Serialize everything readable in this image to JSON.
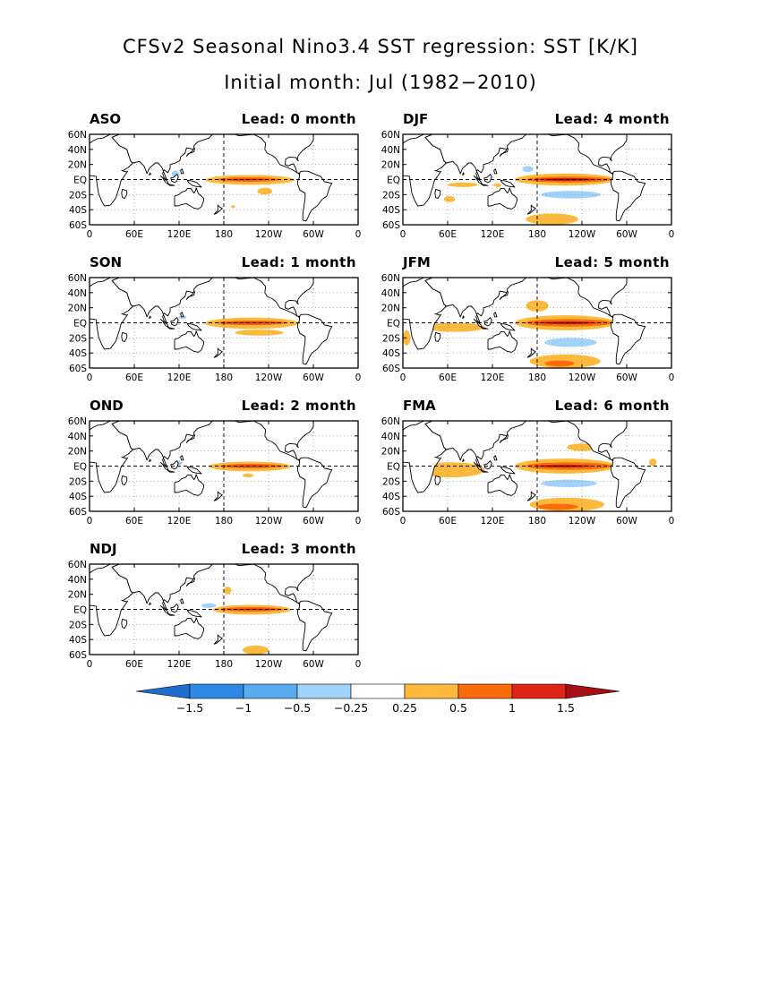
{
  "title_line1": "CFSv2 Seasonal Nino3.4 SST regression: SST [K/K]",
  "title_line2": "Initial month: Jul (1982−2010)",
  "map_axes": {
    "lat_ticks": [
      "60N",
      "40N",
      "20N",
      "EQ",
      "20S",
      "40S",
      "60S"
    ],
    "lon_ticks": [
      "0",
      "60E",
      "120E",
      "180",
      "120W",
      "60W",
      "0"
    ],
    "lon_range": [
      0,
      360
    ],
    "lat_range": [
      -60,
      60
    ],
    "grid": "dotted",
    "reference_lines": [
      "EQ",
      "180"
    ]
  },
  "colors": {
    "le_-1.5": "#1e6ecd",
    "-1.5_-1": "#2f8ae6",
    "-1_-0.5": "#5aaaf0",
    "-0.5_-0.25": "#a0d2fa",
    "-0.25_0.25": "#ffffff",
    "0.25_0.5": "#fdb93c",
    "0.5_1": "#fa6c0a",
    "1_1.5": "#e12316",
    "ge_1.5": "#a50f15"
  },
  "panels": [
    {
      "season": "ASO",
      "lead": "Lead: 0 month"
    },
    {
      "season": "DJF",
      "lead": "Lead: 4 month"
    },
    {
      "season": "SON",
      "lead": "Lead: 1 month"
    },
    {
      "season": "JFM",
      "lead": "Lead: 5 month"
    },
    {
      "season": "OND",
      "lead": "Lead: 2 month"
    },
    {
      "season": "FMA",
      "lead": "Lead: 6 month"
    },
    {
      "season": "NDJ",
      "lead": "Lead: 3 month"
    }
  ],
  "colorbar": {
    "labels": [
      "−1.5",
      "−1",
      "−0.5",
      "−0.25",
      "0.25",
      "0.5",
      "1",
      "1.5"
    ],
    "colors": [
      "#1e6ecd",
      "#2f8ae6",
      "#5aaaf0",
      "#a0d2fa",
      "#ffffff",
      "#fdb93c",
      "#fa6c0a",
      "#e12316",
      "#a50f15"
    ]
  }
}
